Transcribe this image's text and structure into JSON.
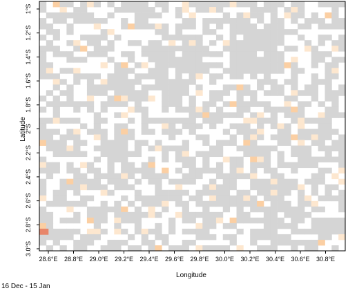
{
  "map": {
    "xlabel": "Longitude",
    "ylabel": "Latitude",
    "date_range": "16 Dec  - 15 Jan",
    "x_ticks": [
      "28.6°E",
      "28.8°E",
      "29.0°E",
      "29.2°E",
      "29.4°E",
      "29.6°E",
      "29.8°E",
      "30.0°E",
      "30.2°E",
      "30.4°E",
      "30.6°E",
      "30.8°E"
    ],
    "y_ticks": [
      "1°S",
      "1.2°S",
      "1.4°S",
      "1.6°S",
      "1.8°S",
      "2°S",
      "2.2°S",
      "2.4°S",
      "2.6°S",
      "2.8°S",
      "3.0°S"
    ],
    "grid_cols": 45,
    "grid_rows": 45,
    "colors": {
      "frame": "#000000",
      "no_data": "#d5d5d5",
      "clear": "#ffffff",
      "low": "#fde7cf",
      "medium": "#fbcfa3",
      "high": "#e8866a"
    }
  }
}
